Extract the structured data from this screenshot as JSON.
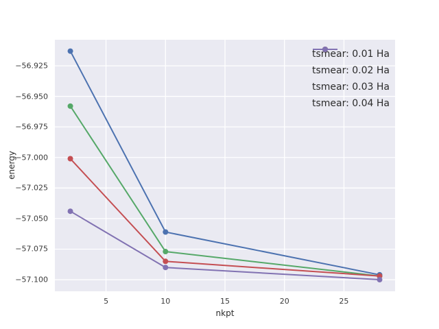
{
  "chart_data": {
    "type": "line",
    "title": "",
    "xlabel": "nkpt",
    "ylabel": "energy",
    "x": [
      2,
      10,
      28
    ],
    "series": [
      {
        "name": "tsmear: 0.01 Ha",
        "color": "#4C72B0",
        "values": [
          -56.913,
          -57.061,
          -57.096
        ]
      },
      {
        "name": "tsmear: 0.02 Ha",
        "color": "#55A868",
        "values": [
          -56.958,
          -57.077,
          -57.097
        ]
      },
      {
        "name": "tsmear: 0.03 Ha",
        "color": "#C44E52",
        "values": [
          -57.001,
          -57.085,
          -57.097
        ]
      },
      {
        "name": "tsmear: 0.04 Ha",
        "color": "#8172B2",
        "values": [
          -57.044,
          -57.09,
          -57.1
        ]
      }
    ],
    "xticks": [
      5,
      10,
      15,
      20,
      25
    ],
    "xtick_labels": [
      "5",
      "10",
      "15",
      "20",
      "25"
    ],
    "yticks": [
      -56.925,
      -56.95,
      -56.975,
      -57.0,
      -57.025,
      -57.05,
      -57.075,
      -57.1
    ],
    "ytick_labels": [
      "−56.925",
      "−56.950",
      "−56.975",
      "−57.000",
      "−57.025",
      "−57.050",
      "−57.075",
      "−57.100"
    ],
    "xlim": [
      0.7,
      29.3
    ],
    "ylim": [
      -57.1095,
      -56.9037
    ],
    "grid": true,
    "legend_position": "upper right",
    "plot_bg_color": "#EAEAF2",
    "grid_color": "#FFFFFF",
    "marker": "o",
    "line_width": 2,
    "marker_radius": 4
  }
}
